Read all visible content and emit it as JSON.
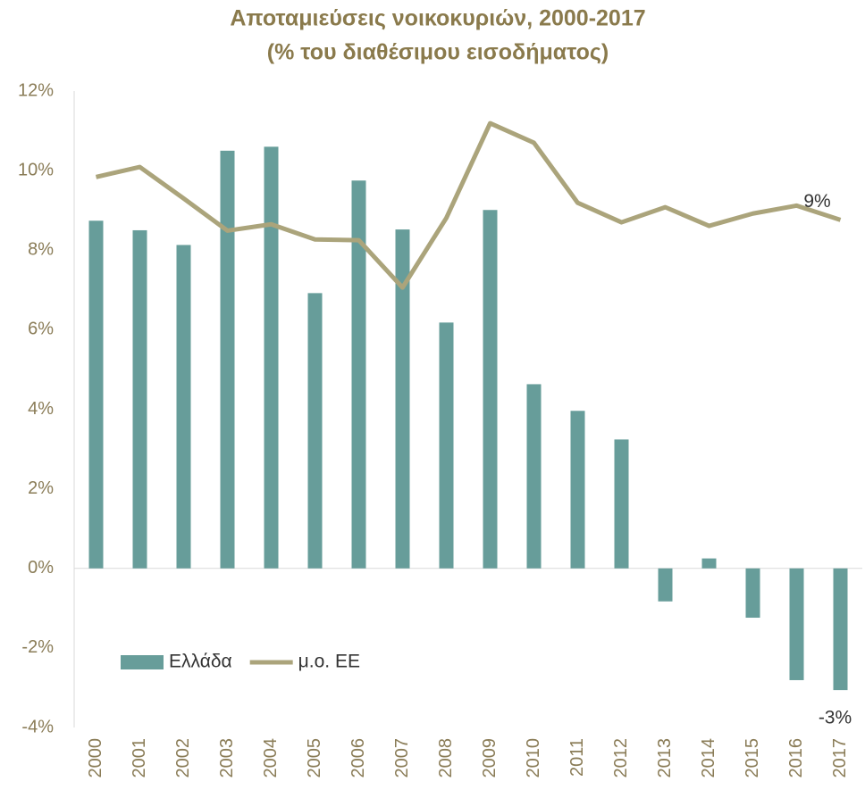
{
  "chart_data": {
    "type": "bar",
    "title": "Αποταμιεύσεις νοικοκυριών, 2000-2017",
    "subtitle": "(% του διαθέσιμου εισοδήματος)",
    "categories": [
      "2000",
      "2001",
      "2002",
      "2003",
      "2004",
      "2005",
      "2006",
      "2007",
      "2008",
      "2009",
      "2010",
      "2011",
      "2012",
      "2013",
      "2014",
      "2015",
      "2016",
      "2017"
    ],
    "series": [
      {
        "name": "Ελλάδα",
        "type": "bar",
        "color": "#679d9a",
        "values": [
          8.74,
          8.5,
          8.13,
          10.5,
          10.6,
          6.92,
          9.75,
          8.52,
          6.18,
          9.01,
          4.63,
          3.96,
          3.24,
          -0.83,
          0.25,
          -1.24,
          -2.81,
          -3.06
        ],
        "value_labels": [
          null,
          null,
          null,
          null,
          null,
          null,
          null,
          null,
          null,
          null,
          null,
          null,
          null,
          null,
          null,
          null,
          null,
          "-3%"
        ]
      },
      {
        "name": "μ.ο. ΕΕ",
        "type": "line",
        "color": "#aba47b",
        "values": [
          9.84,
          10.09,
          9.3,
          8.49,
          8.65,
          8.27,
          8.25,
          7.06,
          8.81,
          11.19,
          10.7,
          9.19,
          8.7,
          9.08,
          8.61,
          8.92,
          9.12,
          8.76
        ],
        "value_labels": [
          null,
          null,
          null,
          null,
          null,
          null,
          null,
          null,
          null,
          null,
          null,
          null,
          null,
          null,
          null,
          null,
          null,
          "9%"
        ]
      }
    ],
    "ylim": [
      -4,
      12
    ],
    "yticks": [
      {
        "value": -4,
        "label": "-4%"
      },
      {
        "value": -2,
        "label": "-2%"
      },
      {
        "value": 0,
        "label": "0%"
      },
      {
        "value": 2,
        "label": "2%"
      },
      {
        "value": 4,
        "label": "4%"
      },
      {
        "value": 6,
        "label": "6%"
      },
      {
        "value": 8,
        "label": "8%"
      },
      {
        "value": 10,
        "label": "10%"
      },
      {
        "value": 12,
        "label": "12%"
      }
    ],
    "grid": false,
    "legend": "lower left"
  }
}
